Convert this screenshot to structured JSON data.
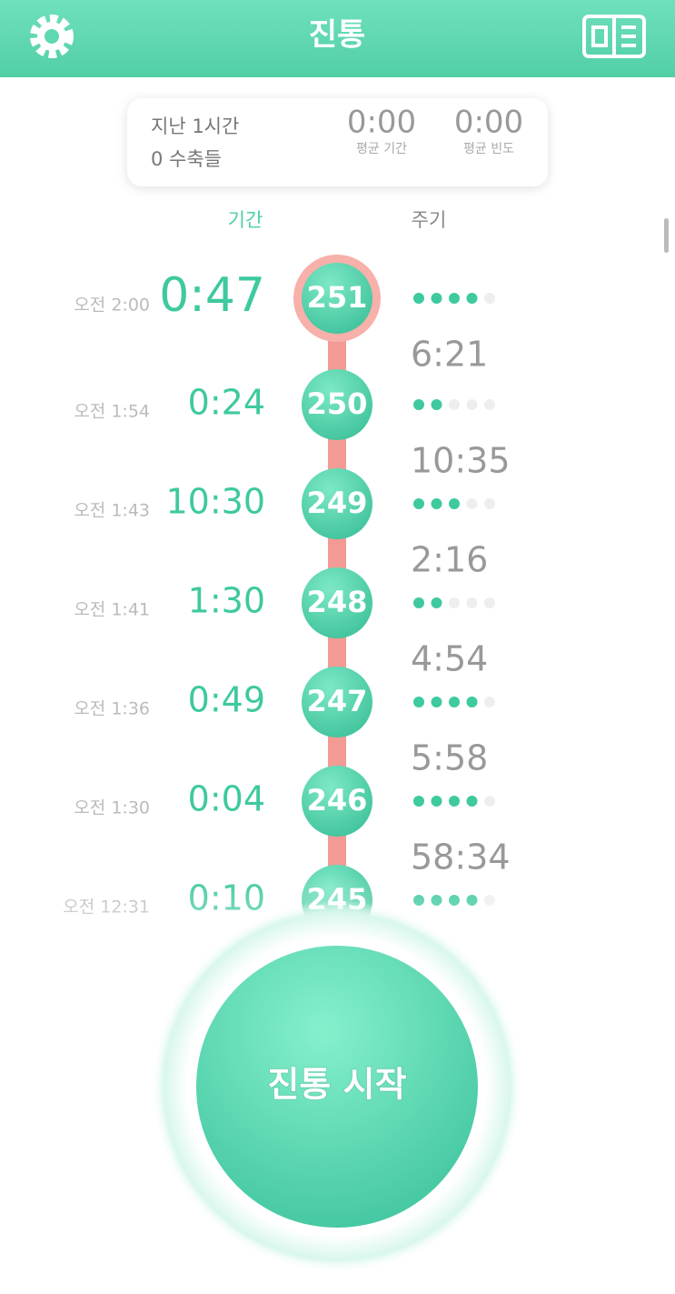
{
  "header": {
    "title": "진통"
  },
  "summary": {
    "period": "지난 1시간",
    "count": "0 수축들",
    "avg_duration": "0:00",
    "avg_duration_label": "평균 기간",
    "avg_frequency": "0:00",
    "avg_frequency_label": "평균 빈도"
  },
  "columns": {
    "duration": "기간",
    "interval": "주기"
  },
  "rows": [
    {
      "time": "오전 2:00",
      "duration": "0:47",
      "number": "251",
      "intensity": 4
    },
    {
      "time": "오전 1:54",
      "duration": "0:24",
      "number": "250",
      "intensity": 2
    },
    {
      "time": "오전 1:43",
      "duration": "10:30",
      "number": "249",
      "intensity": 3
    },
    {
      "time": "오전 1:41",
      "duration": "1:30",
      "number": "248",
      "intensity": 2
    },
    {
      "time": "오전 1:36",
      "duration": "0:49",
      "number": "247",
      "intensity": 4
    },
    {
      "time": "오전 1:30",
      "duration": "0:04",
      "number": "246",
      "intensity": 4
    },
    {
      "time": "오전 12:31",
      "duration": "0:10",
      "number": "245",
      "intensity": 4
    }
  ],
  "intervals": [
    "6:21",
    "10:35",
    "2:16",
    "4:54",
    "5:58",
    "58:34"
  ],
  "button": {
    "label": "진통 시작"
  }
}
